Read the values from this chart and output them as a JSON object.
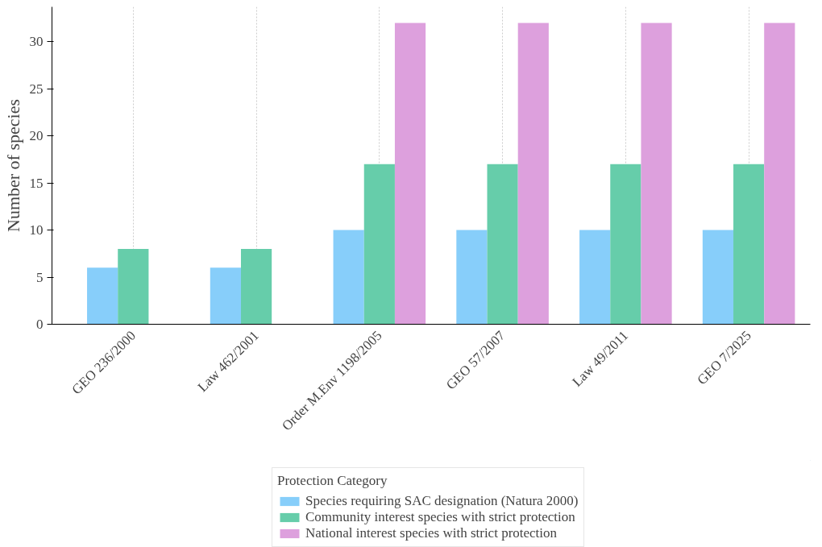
{
  "chart_data": {
    "type": "bar",
    "ylabel": "Number of species",
    "legend_title": "Protection Category",
    "categories": [
      "GEO 236/2000",
      "Law 462/2001",
      "Order M.Env 1198/2005",
      "GEO 57/2007",
      "Law 49/2011",
      "GEO 7/2025"
    ],
    "series": [
      {
        "name": "Species requiring SAC designation (Natura 2000)",
        "color": "#87cefa",
        "values": [
          6,
          6,
          10,
          10,
          10,
          10
        ]
      },
      {
        "name": "Community interest species with strict protection",
        "color": "#66cdaa",
        "values": [
          8,
          8,
          17,
          17,
          17,
          17
        ]
      },
      {
        "name": "National interest species with strict protection",
        "color": "#dda0dd",
        "values": [
          null,
          null,
          32,
          32,
          32,
          32
        ]
      }
    ],
    "ylim": [
      0,
      33.7
    ],
    "yticks": [
      0,
      5,
      10,
      15,
      20,
      25,
      30
    ],
    "grid": "x",
    "legend": "bottom"
  }
}
